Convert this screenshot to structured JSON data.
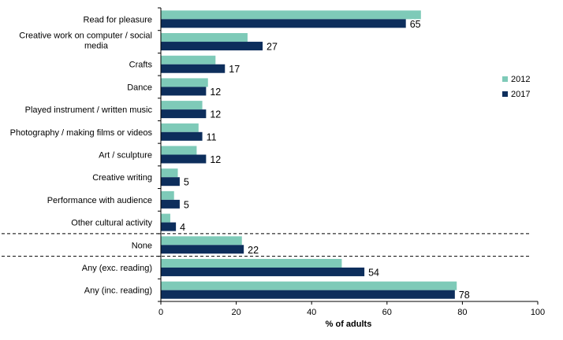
{
  "chart_data": {
    "type": "bar",
    "orientation": "horizontal",
    "categories": [
      [
        "Read for pleasure"
      ],
      [
        "Creative work on computer / social",
        "media"
      ],
      [
        "Crafts"
      ],
      [
        "Dance"
      ],
      [
        "Played instrument / written music"
      ],
      [
        "Photography / making films or videos"
      ],
      [
        "Art / sculpture"
      ],
      [
        "Creative writing"
      ],
      [
        "Performance with audience"
      ],
      [
        "Other cultural activity"
      ],
      [
        "None"
      ],
      [
        "Any (exc. reading)"
      ],
      [
        "Any (inc. reading)"
      ]
    ],
    "series": [
      {
        "name": "2012",
        "color": "#7ecab8",
        "values": [
          69,
          23,
          14.5,
          12.5,
          11,
          10,
          9.5,
          4.5,
          3.5,
          2.5,
          21.5,
          48,
          78.5
        ]
      },
      {
        "name": "2017",
        "color": "#0d2e5c",
        "values": [
          65,
          27,
          17,
          12,
          12,
          11,
          12,
          5,
          5,
          4,
          22,
          54,
          78
        ]
      }
    ],
    "data_labels": [
      "65",
      "27",
      "17",
      "12",
      "12",
      "11",
      "12",
      "5",
      "5",
      "4",
      "22",
      "54",
      "78"
    ],
    "xlabel": "% of adults",
    "xlim": [
      0,
      100
    ],
    "xticks": [
      "0",
      "20",
      "40",
      "60",
      "80",
      "100"
    ],
    "legend_position": "right",
    "separator_groups_after": [
      9,
      10
    ]
  }
}
